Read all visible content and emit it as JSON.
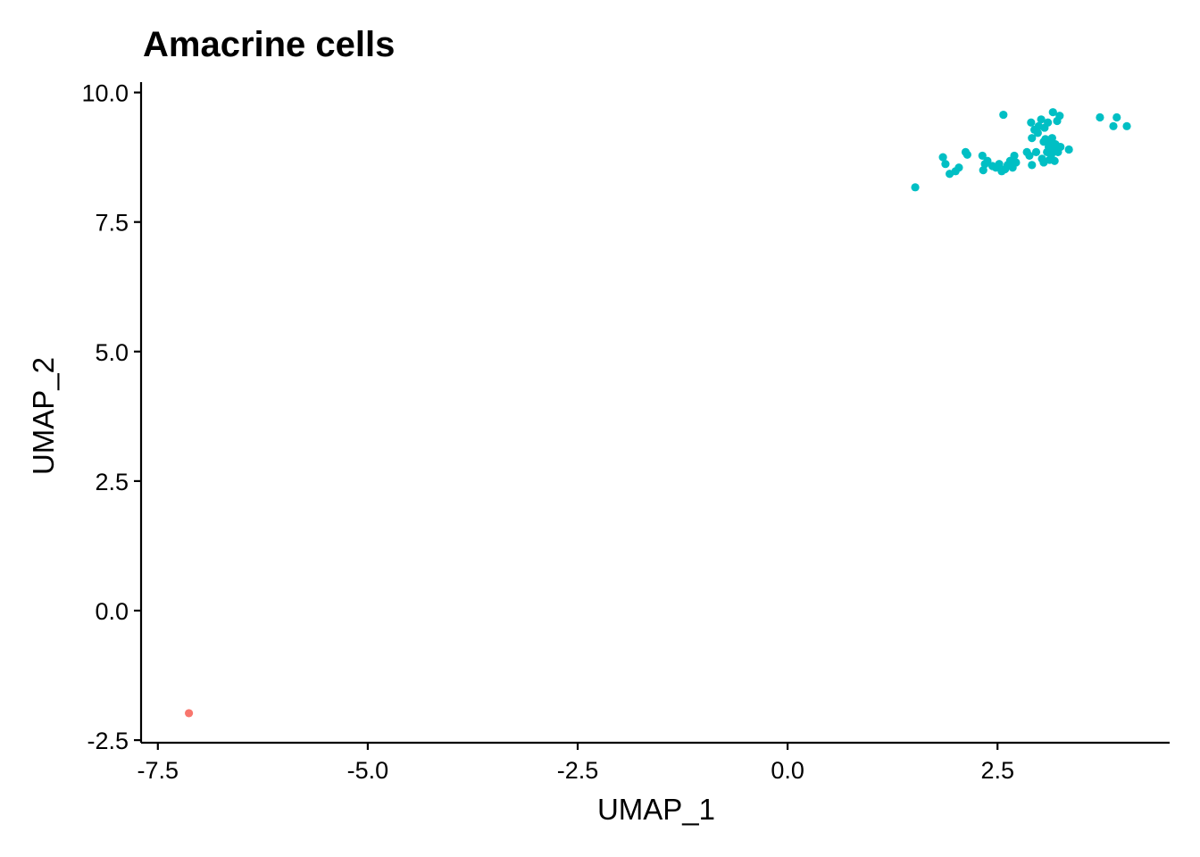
{
  "chart_data": {
    "type": "scatter",
    "title": "Amacrine cells",
    "xlabel": "UMAP_1",
    "ylabel": "UMAP_2",
    "xlim": [
      -7.7,
      4.55
    ],
    "ylim": [
      -2.55,
      10.2
    ],
    "x_ticks": [
      -7.5,
      -5.0,
      -2.5,
      0.0,
      2.5
    ],
    "x_tick_labels": [
      "-7.5",
      "-5.0",
      "-2.5",
      "0.0",
      "2.5"
    ],
    "y_ticks": [
      -2.5,
      0.0,
      2.5,
      5.0,
      7.5,
      10.0
    ],
    "y_tick_labels": [
      "-2.5",
      "0.0",
      "2.5",
      "5.0",
      "7.5",
      "10.0"
    ],
    "grid": false,
    "legend": false,
    "series": [
      {
        "color": "#F8766D",
        "points": [
          [
            -7.13,
            -1.98
          ]
        ]
      },
      {
        "color": "#00BFC4",
        "points": [
          [
            1.52,
            8.17
          ],
          [
            1.85,
            8.75
          ],
          [
            1.88,
            8.62
          ],
          [
            1.93,
            8.43
          ],
          [
            2.0,
            8.48
          ],
          [
            2.04,
            8.55
          ],
          [
            2.12,
            8.85
          ],
          [
            2.14,
            8.8
          ],
          [
            2.32,
            8.78
          ],
          [
            2.33,
            8.5
          ],
          [
            2.35,
            8.62
          ],
          [
            2.38,
            8.68
          ],
          [
            2.44,
            8.58
          ],
          [
            2.48,
            8.55
          ],
          [
            2.52,
            8.62
          ],
          [
            2.55,
            8.48
          ],
          [
            2.57,
            9.57
          ],
          [
            2.59,
            8.52
          ],
          [
            2.62,
            8.6
          ],
          [
            2.65,
            8.68
          ],
          [
            2.68,
            8.55
          ],
          [
            2.7,
            8.78
          ],
          [
            2.72,
            8.65
          ],
          [
            2.85,
            8.85
          ],
          [
            2.88,
            8.78
          ],
          [
            2.9,
            9.42
          ],
          [
            2.91,
            9.12
          ],
          [
            2.91,
            8.6
          ],
          [
            2.94,
            9.28
          ],
          [
            2.96,
            8.85
          ],
          [
            2.98,
            9.22
          ],
          [
            2.99,
            9.35
          ],
          [
            3.02,
            9.48
          ],
          [
            3.03,
            8.72
          ],
          [
            3.05,
            8.65
          ],
          [
            3.05,
            9.05
          ],
          [
            3.06,
            9.32
          ],
          [
            3.07,
            9.1
          ],
          [
            3.09,
            8.85
          ],
          [
            3.1,
            9.42
          ],
          [
            3.11,
            8.95
          ],
          [
            3.12,
            8.7
          ],
          [
            3.13,
            9.05
          ],
          [
            3.14,
            8.8
          ],
          [
            3.15,
            9.12
          ],
          [
            3.16,
            9.62
          ],
          [
            3.17,
            8.9
          ],
          [
            3.18,
            8.68
          ],
          [
            3.19,
            9.0
          ],
          [
            3.21,
            9.45
          ],
          [
            3.22,
            8.85
          ],
          [
            3.24,
            9.55
          ],
          [
            3.25,
            8.95
          ],
          [
            3.35,
            8.9
          ],
          [
            3.72,
            9.52
          ],
          [
            3.88,
            9.35
          ],
          [
            3.92,
            9.52
          ],
          [
            4.04,
            9.35
          ]
        ]
      }
    ]
  }
}
